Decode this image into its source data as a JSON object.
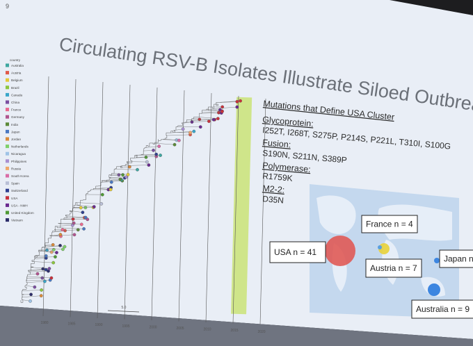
{
  "page_number": "9",
  "title": "Circulating RSV-B Isolates Illustrate Siloed Outbreaks",
  "legend": {
    "title": "country",
    "items": [
      {
        "name": "Australia",
        "color": "#3fa7a0"
      },
      {
        "name": "Austria",
        "color": "#e05a4a"
      },
      {
        "name": "Belgium",
        "color": "#e3c93a"
      },
      {
        "name": "Brazil",
        "color": "#8cc63f"
      },
      {
        "name": "Canada",
        "color": "#3aa6c9"
      },
      {
        "name": "China",
        "color": "#7b4fa0"
      },
      {
        "name": "France",
        "color": "#e96a8f"
      },
      {
        "name": "Germany",
        "color": "#b0558e"
      },
      {
        "name": "India",
        "color": "#5c8a3a"
      },
      {
        "name": "Japan",
        "color": "#4a78c2"
      },
      {
        "name": "Jordan",
        "color": "#d98a3b"
      },
      {
        "name": "Netherlands",
        "color": "#7fd06a"
      },
      {
        "name": "Nicaragua",
        "color": "#9fc3e6"
      },
      {
        "name": "Philippines",
        "color": "#a88fd1"
      },
      {
        "name": "Russia",
        "color": "#f0a86a"
      },
      {
        "name": "South Korea",
        "color": "#d96ca6"
      },
      {
        "name": "Spain",
        "color": "#b9bfd6"
      },
      {
        "name": "Switzerland",
        "color": "#2f3f8f"
      },
      {
        "name": "USA",
        "color": "#c8323c"
      },
      {
        "name": "USA - NMH",
        "color": "#6a2a8f"
      },
      {
        "name": "United Kingdom",
        "color": "#4f9a35"
      },
      {
        "name": "Vietnam",
        "color": "#2d2d6a"
      }
    ]
  },
  "tree": {
    "scale_label": "5.0",
    "axis_labels": [
      "1980",
      "1985",
      "1990",
      "1995",
      "2000",
      "2005",
      "2010",
      "2015",
      "2020"
    ]
  },
  "mutations": {
    "heading": "Mutations that Define USA Cluster",
    "groups": [
      {
        "name": "Glycoprotein:",
        "list": "I252T, I268T, S275P, P214S, P221L, T310I, S100G"
      },
      {
        "name": "Fusion:",
        "list": "S190N,  S211N, S389P"
      },
      {
        "name": "Polymerase:",
        "list": "R1759K"
      },
      {
        "name": "M2-2:",
        "list": "D35N"
      }
    ]
  },
  "map": {
    "labels": [
      "France n = 4",
      "USA n = 41",
      "Austria n = 7",
      "Japan n =",
      "Australia n = 9"
    ]
  }
}
